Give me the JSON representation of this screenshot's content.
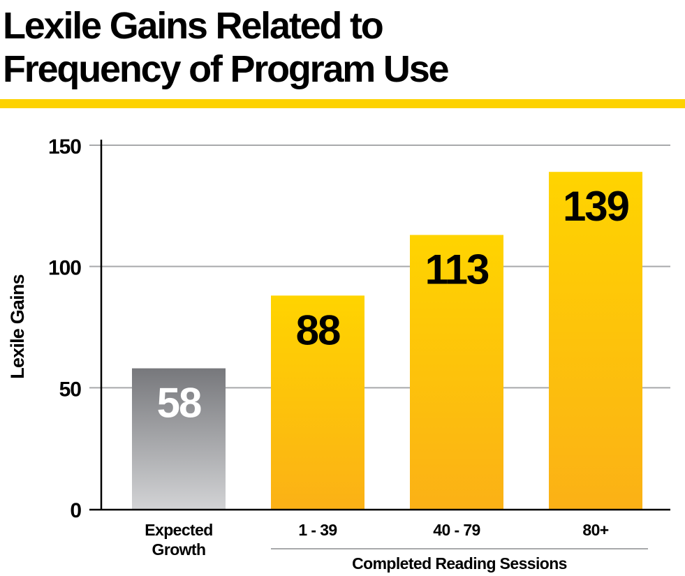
{
  "title_lines": [
    "Lexile Gains Related to",
    "Frequency of Program Use"
  ],
  "colors": {
    "accent_rule": "#fdd200",
    "bar_top": "#ffd400",
    "bar_bottom": "#fbb116",
    "gray_top": "#77787c",
    "gray_bottom": "#d2d3d5",
    "grid": "#a8a9ab",
    "axis": "#000000"
  },
  "chart_data": {
    "type": "bar",
    "title": "Lexile Gains Related to Frequency of Program Use",
    "xlabel": "Completed Reading Sessions",
    "ylabel": "Lexile Gains",
    "ylim": [
      0,
      150
    ],
    "yticks": [
      0,
      50,
      100,
      150
    ],
    "grid": true,
    "categories": [
      "Expected Growth",
      "1 - 39",
      "40 - 79",
      "80+"
    ],
    "category_lines": [
      [
        "Expected",
        "Growth"
      ],
      [
        "1 - 39"
      ],
      [
        "40 - 79"
      ],
      [
        "80+"
      ]
    ],
    "values": [
      58,
      88,
      113,
      139
    ],
    "data_labels": [
      "58",
      "88",
      "113",
      "139"
    ],
    "bar_styles": [
      "gray",
      "yellow",
      "yellow",
      "yellow"
    ],
    "group_label": "Completed Reading Sessions",
    "group_span": [
      "1 - 39",
      "80+"
    ]
  }
}
